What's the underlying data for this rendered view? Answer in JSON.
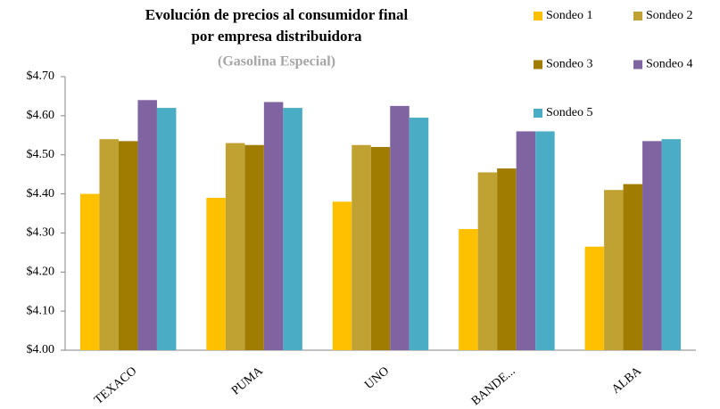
{
  "chart_data": {
    "type": "bar",
    "title": [
      "Evolución de precios al consumidor final",
      "por empresa distribuidora"
    ],
    "subtitle": "(Gasolina Especial)",
    "categories": [
      "TEXACO",
      "PUMA",
      "UNO",
      "BANDE...",
      "ALBA"
    ],
    "series": [
      {
        "name": "Sondeo 1",
        "color": "#ffc000",
        "values": [
          4.4,
          4.39,
          4.38,
          4.31,
          4.265
        ]
      },
      {
        "name": "Sondeo 2",
        "color": "#c0a232",
        "values": [
          4.54,
          4.53,
          4.525,
          4.455,
          4.41
        ]
      },
      {
        "name": "Sondeo 3",
        "color": "#a07d00",
        "values": [
          4.535,
          4.525,
          4.52,
          4.465,
          4.425
        ]
      },
      {
        "name": "Sondeo 4",
        "color": "#8064a2",
        "values": [
          4.64,
          4.635,
          4.625,
          4.56,
          4.535
        ]
      },
      {
        "name": "Sondeo 5",
        "color": "#4bacc6",
        "values": [
          4.62,
          4.62,
          4.595,
          4.56,
          4.54
        ]
      }
    ],
    "ylim": [
      4.0,
      4.7
    ],
    "yticks": [
      {
        "value": 4.0,
        "label": "$4.00"
      },
      {
        "value": 4.1,
        "label": "$4.10"
      },
      {
        "value": 4.2,
        "label": "$4.20"
      },
      {
        "value": 4.3,
        "label": "$4.30"
      },
      {
        "value": 4.4,
        "label": "$4.40"
      },
      {
        "value": 4.5,
        "label": "$4.50"
      },
      {
        "value": 4.6,
        "label": "$4.60"
      },
      {
        "value": 4.7,
        "label": "$4.70"
      }
    ],
    "grid": false,
    "legend": "top-right"
  }
}
